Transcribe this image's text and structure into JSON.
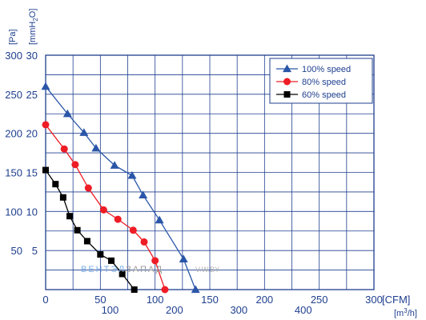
{
  "chart_data": {
    "type": "line",
    "y_axis": {
      "pa_unit": "[Pa]",
      "mmh2o_unit_parts": [
        "[mmH",
        "2",
        "O]"
      ],
      "pa_ticks": [
        50,
        100,
        150,
        200,
        250,
        300
      ],
      "mmh2o_ticks": [
        5,
        10,
        15,
        20,
        25,
        30
      ],
      "ylim": [
        0,
        300
      ]
    },
    "x_axis": {
      "cfm_unit": "[CFM]",
      "m3h_unit_parts": [
        "[m",
        "3",
        "/h]"
      ],
      "cfm_ticks": [
        0,
        50,
        100,
        150,
        200,
        250,
        300
      ],
      "m3h_ticks": [
        100,
        200,
        300,
        400
      ],
      "xlim": [
        0,
        300
      ]
    },
    "grid": true,
    "legend_position": "top-right",
    "series": [
      {
        "name": "100%  speed",
        "color": "#2a56a8",
        "marker": "triangle",
        "points": [
          [
            0,
            260
          ],
          [
            20,
            225
          ],
          [
            35,
            201
          ],
          [
            46,
            181
          ],
          [
            63,
            159
          ],
          [
            79,
            146
          ],
          [
            89,
            121
          ],
          [
            104,
            89
          ],
          [
            126,
            39
          ],
          [
            137,
            0
          ]
        ]
      },
      {
        "name": "80%  speed",
        "color": "#ee1c25",
        "marker": "circle",
        "points": [
          [
            0,
            211
          ],
          [
            17,
            180
          ],
          [
            27,
            160
          ],
          [
            39,
            130
          ],
          [
            53,
            102
          ],
          [
            66,
            90
          ],
          [
            80,
            76
          ],
          [
            90,
            61
          ],
          [
            100,
            37
          ],
          [
            109,
            0
          ]
        ]
      },
      {
        "name": "60%  speed",
        "color": "#000000",
        "marker": "square",
        "points": [
          [
            0,
            153
          ],
          [
            9,
            135
          ],
          [
            16,
            118
          ],
          [
            22,
            94
          ],
          [
            29,
            76
          ],
          [
            38,
            62
          ],
          [
            50,
            45
          ],
          [
            60,
            37
          ],
          [
            70,
            20
          ],
          [
            81,
            0
          ]
        ]
      }
    ]
  },
  "watermark": {
    "part1": "ВЕНТЭЛ",
    "part2": "ЗАПАД",
    "part3": "V.W.BY"
  }
}
